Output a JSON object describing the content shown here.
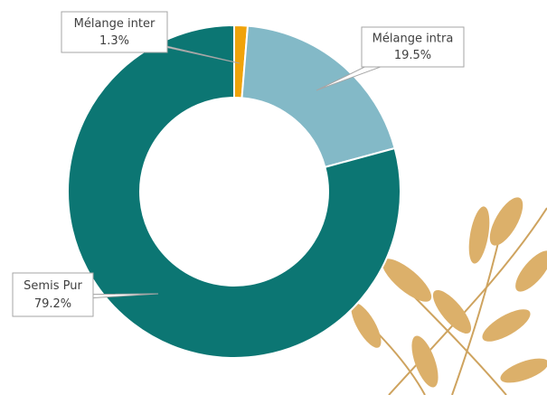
{
  "chart_data": {
    "type": "donut",
    "categories": [
      "Mélange inter",
      "Mélange intra",
      "Semis Pur"
    ],
    "values": [
      1.3,
      19.5,
      79.2
    ],
    "value_labels": [
      "1.3%",
      "19.5%",
      "79.2%"
    ],
    "colors": [
      "#f0a30a",
      "#83b9c7",
      "#0c7673"
    ]
  }
}
